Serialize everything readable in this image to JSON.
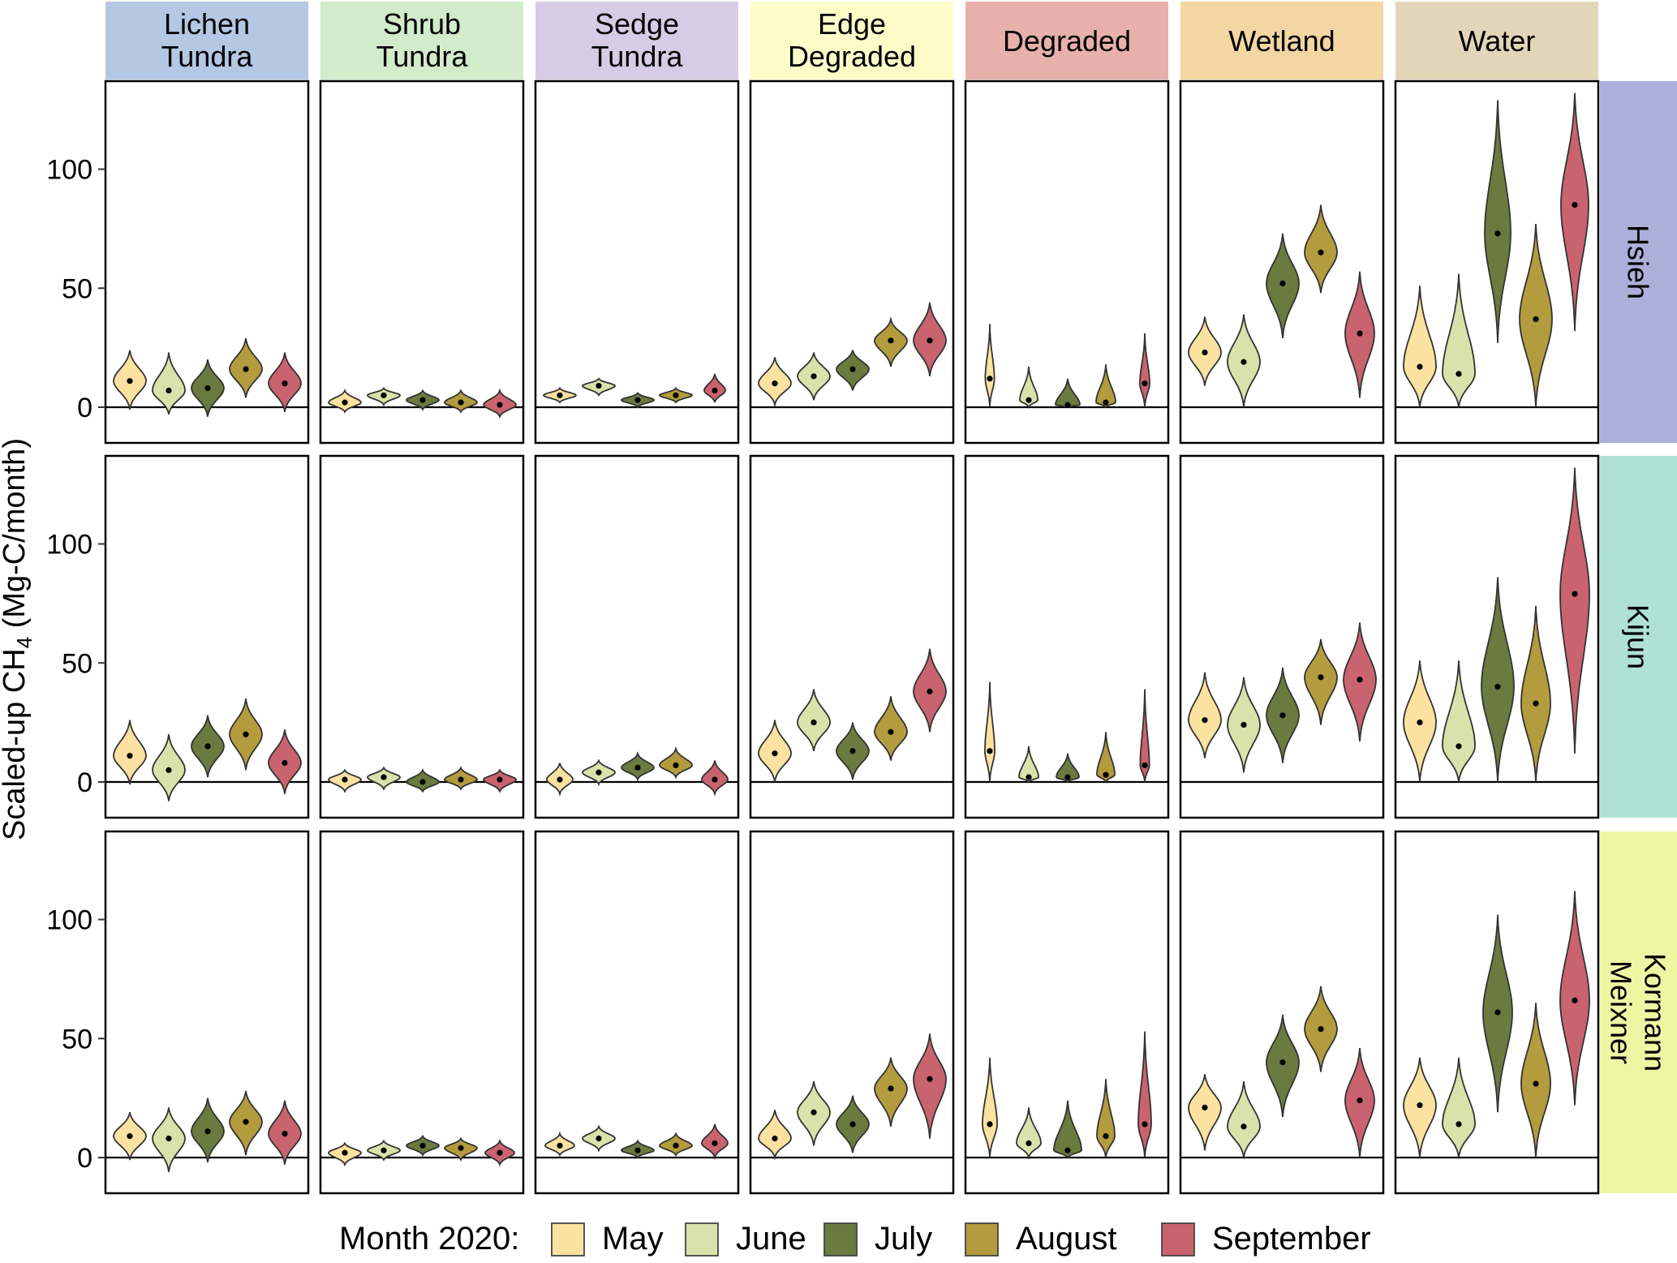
{
  "chart_data": {
    "type": "violin",
    "ylabel_main": "Scaled-up CH",
    "ylabel_sub": "4",
    "ylabel_tail": " (Mg-C/month)",
    "ylim": [
      -15,
      137
    ],
    "yticks": [
      0,
      50,
      100
    ],
    "legend": {
      "title": "Month 2020:",
      "placement": "bottom",
      "entries": [
        "May",
        "June",
        "July",
        "August",
        "September"
      ]
    },
    "months": [
      "May",
      "June",
      "July",
      "August",
      "September"
    ],
    "month_colors": [
      "#fbe2a0",
      "#d9e2ab",
      "#6b7a3f",
      "#b39c3d",
      "#c9636f"
    ],
    "columns": [
      {
        "lines": [
          "Lichen",
          "Tundra"
        ],
        "color": "#b4c8e4"
      },
      {
        "lines": [
          "Shrub",
          "Tundra"
        ],
        "color": "#d2ebcb"
      },
      {
        "lines": [
          "Sedge",
          "Tundra"
        ],
        "color": "#d7cbe6"
      },
      {
        "lines": [
          "Edge",
          "Degraded"
        ],
        "color": "#fdfcc9"
      },
      {
        "lines": [
          "Degraded"
        ],
        "color": "#e8b0ab"
      },
      {
        "lines": [
          "Wetland"
        ],
        "color": "#f4d6a3"
      },
      {
        "lines": [
          "Water"
        ],
        "color": "#e2d6b8"
      }
    ],
    "rows": [
      {
        "lines": [
          "Hsieh"
        ],
        "color": "#abafd9"
      },
      {
        "lines": [
          "Kijun"
        ],
        "color": "#afe2d4"
      },
      {
        "lines": [
          "Kormann",
          "Meixner"
        ],
        "color": "#eef6a4"
      }
    ],
    "series": [
      [
        [
          {
            "median": 11,
            "lo": -1,
            "hi": 24,
            "w": 1.0
          },
          {
            "median": 7,
            "lo": -3,
            "hi": 23,
            "w": 1.0
          },
          {
            "median": 8,
            "lo": -4,
            "hi": 20,
            "w": 1.0
          },
          {
            "median": 16,
            "lo": 4,
            "hi": 29,
            "w": 1.0
          },
          {
            "median": 10,
            "lo": -2,
            "hi": 23,
            "w": 1.0
          }
        ],
        [
          {
            "median": 2,
            "lo": -2,
            "hi": 7,
            "w": 1.0
          },
          {
            "median": 5,
            "lo": 1,
            "hi": 8,
            "w": 1.0
          },
          {
            "median": 3,
            "lo": -1,
            "hi": 7,
            "w": 1.0
          },
          {
            "median": 2,
            "lo": -2,
            "hi": 7,
            "w": 1.0
          },
          {
            "median": 1,
            "lo": -4,
            "hi": 7,
            "w": 1.0
          }
        ],
        [
          {
            "median": 5,
            "lo": 2,
            "hi": 8,
            "w": 1.0
          },
          {
            "median": 9,
            "lo": 5,
            "hi": 12,
            "w": 1.0
          },
          {
            "median": 3,
            "lo": 0,
            "hi": 6,
            "w": 1.0
          },
          {
            "median": 5,
            "lo": 2,
            "hi": 8,
            "w": 1.0
          },
          {
            "median": 7,
            "lo": 2,
            "hi": 14,
            "w": 0.65
          }
        ],
        [
          {
            "median": 10,
            "lo": 1,
            "hi": 21,
            "w": 1.0
          },
          {
            "median": 13,
            "lo": 3,
            "hi": 23,
            "w": 1.0
          },
          {
            "median": 16,
            "lo": 7,
            "hi": 24,
            "w": 1.0
          },
          {
            "median": 28,
            "lo": 17,
            "hi": 37,
            "w": 1.0
          },
          {
            "median": 28,
            "lo": 13,
            "hi": 44,
            "w": 1.0
          }
        ],
        [
          {
            "median": 12,
            "lo": 0,
            "hi": 35,
            "w": 0.28
          },
          {
            "median": 3,
            "lo": 0,
            "hi": 17,
            "w": 0.55
          },
          {
            "median": 1,
            "lo": 0,
            "hi": 12,
            "w": 0.75
          },
          {
            "median": 2,
            "lo": 0,
            "hi": 18,
            "w": 0.6
          },
          {
            "median": 10,
            "lo": 0,
            "hi": 31,
            "w": 0.3
          }
        ],
        [
          {
            "median": 23,
            "lo": 9,
            "hi": 38,
            "w": 1.0
          },
          {
            "median": 19,
            "lo": 0,
            "hi": 39,
            "w": 1.0
          },
          {
            "median": 52,
            "lo": 29,
            "hi": 73,
            "w": 1.0
          },
          {
            "median": 65,
            "lo": 48,
            "hi": 85,
            "w": 1.0
          },
          {
            "median": 31,
            "lo": 4,
            "hi": 57,
            "w": 0.9
          }
        ],
        [
          {
            "median": 17,
            "lo": 0,
            "hi": 51,
            "w": 1.0
          },
          {
            "median": 14,
            "lo": 0,
            "hi": 56,
            "w": 1.0
          },
          {
            "median": 73,
            "lo": 27,
            "hi": 129,
            "w": 0.8
          },
          {
            "median": 37,
            "lo": 0,
            "hi": 77,
            "w": 1.0
          },
          {
            "median": 85,
            "lo": 32,
            "hi": 132,
            "w": 0.85
          }
        ]
      ],
      [
        [
          {
            "median": 11,
            "lo": -1,
            "hi": 26,
            "w": 1.0
          },
          {
            "median": 5,
            "lo": -8,
            "hi": 20,
            "w": 1.0
          },
          {
            "median": 15,
            "lo": 2,
            "hi": 28,
            "w": 1.0
          },
          {
            "median": 20,
            "lo": 5,
            "hi": 35,
            "w": 1.0
          },
          {
            "median": 8,
            "lo": -5,
            "hi": 22,
            "w": 1.0
          }
        ],
        [
          {
            "median": 1,
            "lo": -4,
            "hi": 5,
            "w": 1.0
          },
          {
            "median": 2,
            "lo": -3,
            "hi": 6,
            "w": 1.0
          },
          {
            "median": 0,
            "lo": -4,
            "hi": 5,
            "w": 1.0
          },
          {
            "median": 1,
            "lo": -3,
            "hi": 6,
            "w": 1.0
          },
          {
            "median": 1,
            "lo": -4,
            "hi": 5,
            "w": 1.0
          }
        ],
        [
          {
            "median": 1,
            "lo": -5,
            "hi": 8,
            "w": 0.8
          },
          {
            "median": 4,
            "lo": -1,
            "hi": 9,
            "w": 1.0
          },
          {
            "median": 6,
            "lo": 1,
            "hi": 12,
            "w": 1.0
          },
          {
            "median": 7,
            "lo": 2,
            "hi": 14,
            "w": 1.0
          },
          {
            "median": 1,
            "lo": -5,
            "hi": 9,
            "w": 0.8
          }
        ],
        [
          {
            "median": 12,
            "lo": 0,
            "hi": 26,
            "w": 1.0
          },
          {
            "median": 25,
            "lo": 13,
            "hi": 39,
            "w": 1.0
          },
          {
            "median": 13,
            "lo": 1,
            "hi": 25,
            "w": 1.0
          },
          {
            "median": 21,
            "lo": 9,
            "hi": 36,
            "w": 1.0
          },
          {
            "median": 38,
            "lo": 21,
            "hi": 56,
            "w": 1.0
          }
        ],
        [
          {
            "median": 13,
            "lo": 0,
            "hi": 42,
            "w": 0.3
          },
          {
            "median": 2,
            "lo": 0,
            "hi": 15,
            "w": 0.6
          },
          {
            "median": 2,
            "lo": 0,
            "hi": 12,
            "w": 0.7
          },
          {
            "median": 3,
            "lo": 0,
            "hi": 21,
            "w": 0.55
          },
          {
            "median": 7,
            "lo": 0,
            "hi": 39,
            "w": 0.28
          }
        ],
        [
          {
            "median": 26,
            "lo": 10,
            "hi": 46,
            "w": 1.0
          },
          {
            "median": 24,
            "lo": 4,
            "hi": 44,
            "w": 1.0
          },
          {
            "median": 28,
            "lo": 8,
            "hi": 48,
            "w": 1.0
          },
          {
            "median": 44,
            "lo": 24,
            "hi": 60,
            "w": 1.0
          },
          {
            "median": 43,
            "lo": 17,
            "hi": 67,
            "w": 1.0
          }
        ],
        [
          {
            "median": 25,
            "lo": 0,
            "hi": 51,
            "w": 1.0
          },
          {
            "median": 15,
            "lo": 0,
            "hi": 51,
            "w": 1.0
          },
          {
            "median": 40,
            "lo": 0,
            "hi": 86,
            "w": 1.0
          },
          {
            "median": 33,
            "lo": 0,
            "hi": 74,
            "w": 0.9
          },
          {
            "median": 79,
            "lo": 12,
            "hi": 132,
            "w": 0.9
          }
        ]
      ],
      [
        [
          {
            "median": 9,
            "lo": -1,
            "hi": 19,
            "w": 1.0
          },
          {
            "median": 8,
            "lo": -6,
            "hi": 21,
            "w": 1.0
          },
          {
            "median": 11,
            "lo": -2,
            "hi": 25,
            "w": 1.0
          },
          {
            "median": 15,
            "lo": 1,
            "hi": 28,
            "w": 1.0
          },
          {
            "median": 10,
            "lo": -3,
            "hi": 24,
            "w": 1.0
          }
        ],
        [
          {
            "median": 2,
            "lo": -3,
            "hi": 6,
            "w": 1.0
          },
          {
            "median": 3,
            "lo": -1,
            "hi": 7,
            "w": 1.0
          },
          {
            "median": 5,
            "lo": 1,
            "hi": 9,
            "w": 1.0
          },
          {
            "median": 4,
            "lo": -1,
            "hi": 8,
            "w": 1.0
          },
          {
            "median": 2,
            "lo": -3,
            "hi": 7,
            "w": 0.9
          }
        ],
        [
          {
            "median": 5,
            "lo": 1,
            "hi": 10,
            "w": 0.9
          },
          {
            "median": 8,
            "lo": 3,
            "hi": 13,
            "w": 1.0
          },
          {
            "median": 3,
            "lo": 0,
            "hi": 7,
            "w": 1.0
          },
          {
            "median": 5,
            "lo": 1,
            "hi": 10,
            "w": 1.0
          },
          {
            "median": 6,
            "lo": 0,
            "hi": 14,
            "w": 0.8
          }
        ],
        [
          {
            "median": 8,
            "lo": 0,
            "hi": 20,
            "w": 1.0
          },
          {
            "median": 19,
            "lo": 5,
            "hi": 32,
            "w": 1.0
          },
          {
            "median": 14,
            "lo": 2,
            "hi": 26,
            "w": 1.0
          },
          {
            "median": 29,
            "lo": 13,
            "hi": 42,
            "w": 1.0
          },
          {
            "median": 33,
            "lo": 8,
            "hi": 52,
            "w": 1.0
          }
        ],
        [
          {
            "median": 14,
            "lo": 0,
            "hi": 42,
            "w": 0.45
          },
          {
            "median": 6,
            "lo": 0,
            "hi": 21,
            "w": 0.75
          },
          {
            "median": 3,
            "lo": 0,
            "hi": 24,
            "w": 0.85
          },
          {
            "median": 9,
            "lo": 0,
            "hi": 33,
            "w": 0.55
          },
          {
            "median": 14,
            "lo": 0,
            "hi": 53,
            "w": 0.4
          }
        ],
        [
          {
            "median": 21,
            "lo": 3,
            "hi": 35,
            "w": 1.0
          },
          {
            "median": 13,
            "lo": 0,
            "hi": 32,
            "w": 1.0
          },
          {
            "median": 40,
            "lo": 17,
            "hi": 60,
            "w": 1.0
          },
          {
            "median": 54,
            "lo": 36,
            "hi": 72,
            "w": 1.0
          },
          {
            "median": 24,
            "lo": 0,
            "hi": 46,
            "w": 0.9
          }
        ],
        [
          {
            "median": 22,
            "lo": 0,
            "hi": 42,
            "w": 1.0
          },
          {
            "median": 14,
            "lo": 0,
            "hi": 42,
            "w": 1.0
          },
          {
            "median": 61,
            "lo": 19,
            "hi": 102,
            "w": 0.9
          },
          {
            "median": 31,
            "lo": 0,
            "hi": 65,
            "w": 0.9
          },
          {
            "median": 66,
            "lo": 22,
            "hi": 112,
            "w": 0.9
          }
        ]
      ]
    ]
  }
}
